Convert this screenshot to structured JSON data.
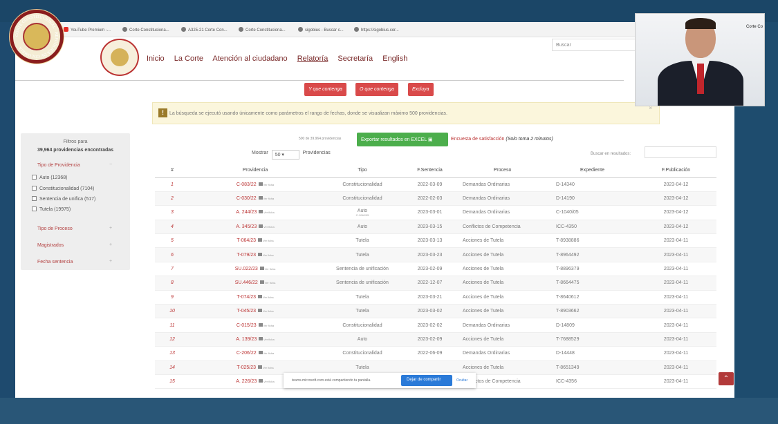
{
  "bookmarks": [
    "YouTube Premium -...",
    "Corte Constituciona...",
    "A325-21 Corte Con...",
    "Corte Constituciona...",
    "sigobius - Buscar c...",
    "https://sigobius.cor..."
  ],
  "seal_text": "CORTE CONSTITUCIONAL · REPÚBLICA DE COLOMBIA",
  "nav": {
    "items": [
      "Inicio",
      "La Corte",
      "Atención al ciudadano",
      "Relatoría",
      "Secretaría",
      "English"
    ],
    "active": "Relatoría",
    "search_placeholder": "Buscar"
  },
  "filter_buttons": [
    "Y que contenga",
    "O que contenga",
    "Excluya"
  ],
  "alert": {
    "icon": "warning-icon",
    "text": "La búsqueda se ejecutó usando únicamente como parámetros el rango de fechas, donde se visualizan máximo 500 providencias.",
    "close": "×"
  },
  "sidebar": {
    "title_line1": "Filtros para",
    "title_line2": "39,964 providencias encontradas",
    "section_tipo_providencia": "Tipo de Providencia",
    "options": [
      "Auto (12368)",
      "Constitucionalidad (7104)",
      "Sentencia de unifica (517)",
      "Tutela (19975)"
    ],
    "section_tipo_proceso": "Tipo de Proceso",
    "section_magistrados": "Magistrados",
    "section_fecha": "Fecha sentencia",
    "toggle_open": "−",
    "toggle_closed": "+"
  },
  "results": {
    "count": "500 de 39.964 providencias",
    "excel_label": "Exportar resultados en EXCEL",
    "survey_label": "Encuesta de satisfacción",
    "survey_note": "(Solo toma 2 minutos)",
    "show_label": "Mostrar",
    "show_value": "50",
    "show_suffix": "Providencias",
    "search_label": "Buscar en resultados:"
  },
  "table": {
    "headers": [
      "#",
      "Providencia",
      "Tipo",
      "F.Sentencia",
      "Proceso",
      "Expediente",
      "F.Publicación"
    ],
    "pdf_note": "Ver ficha",
    "rows": [
      {
        "n": "1",
        "prov": "C-083/22",
        "tipo": "Constitucionalidad",
        "fecha": "2022-03-09",
        "proceso": "Demandas Ordinarias",
        "exp": "D-14340",
        "pub": "2023-04-12"
      },
      {
        "n": "2",
        "prov": "C-030/22",
        "tipo": "Constitucionalidad",
        "fecha": "2022-02-03",
        "proceso": "Demandas Ordinarias",
        "exp": "D-14190",
        "pub": "2023-04-12"
      },
      {
        "n": "3",
        "prov": "A. 244/23",
        "tipo": "Auto",
        "tipo_sub": "C-1040/05",
        "fecha": "2023-03-01",
        "proceso": "Demandas Ordinarias",
        "exp": "C-1040/05",
        "pub": "2023-04-12"
      },
      {
        "n": "4",
        "prov": "A. 345/23",
        "tipo": "Auto",
        "fecha": "2023-03-15",
        "proceso": "Conflictos de Competencia",
        "exp": "ICC-4350",
        "pub": "2023-04-12"
      },
      {
        "n": "5",
        "prov": "T-064/23",
        "tipo": "Tutela",
        "fecha": "2023-03-13",
        "proceso": "Acciones de Tutela",
        "exp": "T-8938886",
        "pub": "2023-04-11"
      },
      {
        "n": "6",
        "prov": "T-079/23",
        "tipo": "Tutela",
        "fecha": "2023-03-23",
        "proceso": "Acciones de Tutela",
        "exp": "T-8964492",
        "pub": "2023-04-11"
      },
      {
        "n": "7",
        "prov": "SU.022/23",
        "tipo": "Sentencia de unificación",
        "fecha": "2023-02-09",
        "proceso": "Acciones de Tutela",
        "exp": "T-8896379",
        "pub": "2023-04-11"
      },
      {
        "n": "8",
        "prov": "SU.446/22",
        "tipo": "Sentencia de unificación",
        "fecha": "2022-12-07",
        "proceso": "Acciones de Tutela",
        "exp": "T-8664475",
        "pub": "2023-04-11"
      },
      {
        "n": "9",
        "prov": "T-074/23",
        "tipo": "Tutela",
        "fecha": "2023-03-21",
        "proceso": "Acciones de Tutela",
        "exp": "T-8640612",
        "pub": "2023-04-11"
      },
      {
        "n": "10",
        "prov": "T-045/23",
        "tipo": "Tutela",
        "fecha": "2023-03-02",
        "proceso": "Acciones de Tutela",
        "exp": "T-8903662",
        "pub": "2023-04-11"
      },
      {
        "n": "11",
        "prov": "C-015/23",
        "tipo": "Constitucionalidad",
        "fecha": "2023-02-02",
        "proceso": "Demandas Ordinarias",
        "exp": "D-14809",
        "pub": "2023-04-11"
      },
      {
        "n": "12",
        "prov": "A. 139/23",
        "tipo": "Auto",
        "fecha": "2023-02-09",
        "proceso": "Acciones de Tutela",
        "exp": "T-7688529",
        "pub": "2023-04-11"
      },
      {
        "n": "13",
        "prov": "C-206/22",
        "tipo": "Constitucionalidad",
        "fecha": "2022-06-09",
        "proceso": "Demandas Ordinarias",
        "exp": "D-14448",
        "pub": "2023-04-11"
      },
      {
        "n": "14",
        "prov": "T-025/23",
        "tipo": "Tutela",
        "fecha": "",
        "proceso": "Acciones de Tutela",
        "exp": "T-8651349",
        "pub": "2023-04-11"
      },
      {
        "n": "15",
        "prov": "A. 226/23",
        "tipo": "Auto",
        "fecha": "2023-03-08",
        "proceso": "Conflictos de Competencia",
        "exp": "ICC-4356",
        "pub": "2023-04-11"
      }
    ]
  },
  "share_bar": {
    "text": "teams.microsoft.com está compartiendo tu pantalla.",
    "stop_label": "Dejar de compartir",
    "hide_label": "Ocultar"
  },
  "scroll_top_icon": "chevron-up-icon",
  "webcam": {
    "label": "Corte Co"
  }
}
